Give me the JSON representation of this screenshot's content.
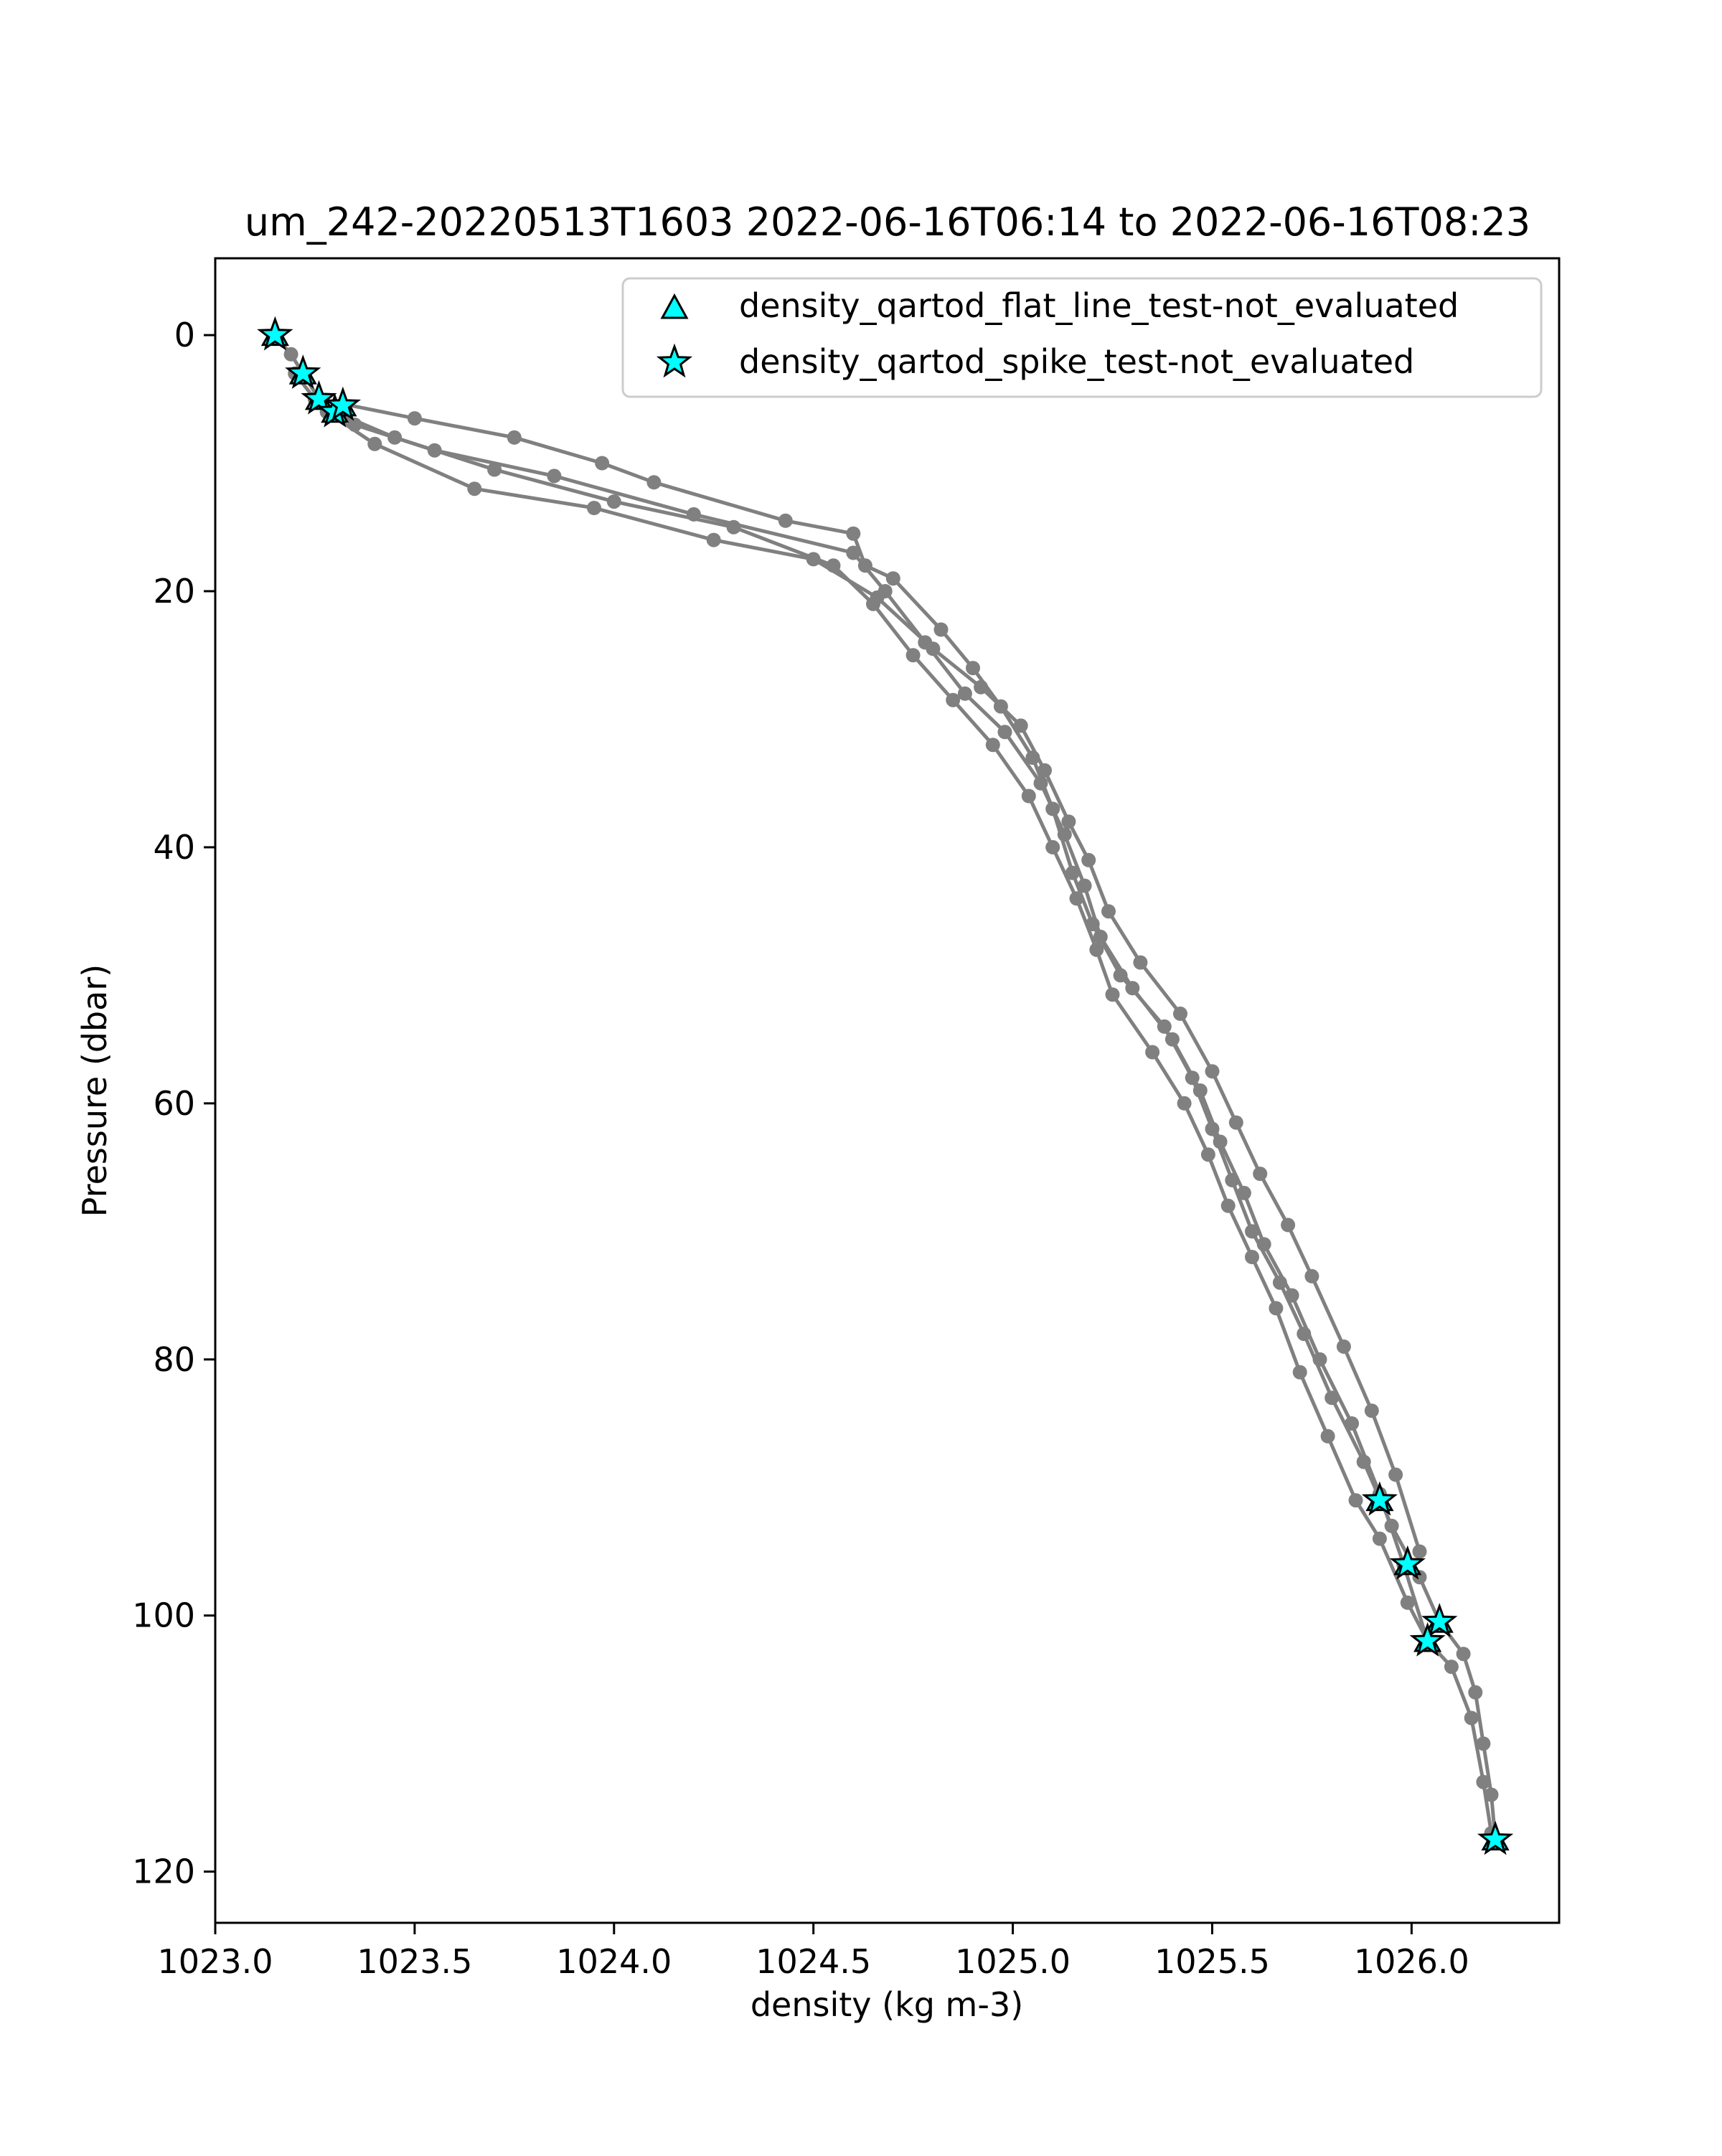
{
  "chart_data": {
    "type": "scatter",
    "title": "um_242-20220513T1603 2022-06-16T06:14 to 2022-06-16T08:23",
    "xlabel": "density (kg m-3)",
    "ylabel": "Pressure (dbar)",
    "xlim": [
      1023.0,
      1026.37
    ],
    "ylim": [
      124,
      -6
    ],
    "y_inverted": true,
    "x_ticks": [
      1023.0,
      1023.5,
      1024.0,
      1024.5,
      1025.0,
      1025.5,
      1026.0
    ],
    "x_tick_labels": [
      "1023.0",
      "1023.5",
      "1024.0",
      "1024.5",
      "1025.0",
      "1025.5",
      "1026.0"
    ],
    "y_ticks": [
      0,
      20,
      40,
      60,
      80,
      100,
      120
    ],
    "y_tick_labels": [
      "0",
      "20",
      "40",
      "60",
      "80",
      "100",
      "120"
    ],
    "grid": false,
    "legend_position": "top-right",
    "legend": [
      {
        "label": "density_qartod_flat_line_test-not_evaluated",
        "marker": "triangle",
        "color": "#00FFFF"
      },
      {
        "label": "density_qartod_spike_test-not_evaluated",
        "marker": "star",
        "color": "#00FFFF"
      }
    ],
    "profile_color": "#808080",
    "series": [
      {
        "x": [
          1023.15,
          1023.19,
          1023.22,
          1023.26,
          1023.5,
          1023.75,
          1023.97,
          1024.1,
          1024.43,
          1024.6,
          1024.63,
          1024.7,
          1024.82,
          1024.9,
          1024.97,
          1025.05,
          1025.1,
          1025.15,
          1025.2,
          1025.27,
          1025.38,
          1025.45,
          1025.5,
          1025.55,
          1025.6,
          1025.67,
          1025.73,
          1025.8,
          1025.88,
          1025.95,
          1026.02,
          1026.07,
          1026.13,
          1026.16,
          1026.18,
          1026.2,
          1026.21
        ],
        "y": [
          0,
          1.5,
          3,
          5,
          6.5,
          8,
          10,
          11.5,
          14.5,
          15.5,
          18,
          19,
          23,
          26,
          29,
          33,
          37,
          42,
          46,
          50,
          54,
          58,
          62,
          66,
          70,
          74,
          78,
          83,
          88,
          93,
          97,
          100.5,
          103,
          106,
          110,
          114,
          117.5
        ]
      },
      {
        "x": [
          1023.2,
          1023.25,
          1023.35,
          1023.55,
          1023.85,
          1024.2,
          1024.6,
          1024.68,
          1024.78,
          1024.88,
          1024.98,
          1025.07,
          1025.13,
          1025.18,
          1025.22,
          1025.3,
          1025.4,
          1025.47,
          1025.52,
          1025.58,
          1025.63,
          1025.7,
          1025.77,
          1025.85,
          1025.92,
          1025.98,
          1026.04,
          1026.1,
          1026.15,
          1026.18,
          1026.2
        ],
        "y": [
          3,
          5,
          7,
          9,
          11,
          14,
          17,
          20,
          24,
          28,
          31,
          35,
          39,
          43,
          47,
          51,
          55,
          59,
          63,
          67,
          71,
          75,
          80,
          85,
          90.5,
          96,
          102,
          104,
          108,
          113,
          117
        ]
      },
      {
        "x": [
          1023.25,
          1023.3,
          1023.45,
          1023.7,
          1024.0,
          1024.3,
          1024.55,
          1024.65,
          1024.75,
          1024.85,
          1024.95,
          1025.04,
          1025.1,
          1025.16,
          1025.21,
          1025.25,
          1025.35,
          1025.43,
          1025.49,
          1025.54,
          1025.6,
          1025.66,
          1025.72,
          1025.79,
          1025.86,
          1025.92,
          1025.99,
          1026.04
        ],
        "y": [
          5,
          6,
          8,
          10.5,
          13,
          15,
          18,
          21,
          25,
          28.5,
          32,
          36,
          40,
          44,
          48,
          51.5,
          56,
          60,
          64,
          68,
          72,
          76,
          81,
          86,
          91,
          94,
          99,
          102
        ]
      },
      {
        "x": [
          1023.28,
          1023.4,
          1023.65,
          1023.95,
          1024.25,
          1024.5,
          1024.66,
          1024.8,
          1024.92,
          1025.02,
          1025.08,
          1025.14,
          1025.19,
          1025.24,
          1025.32,
          1025.42,
          1025.5,
          1025.56,
          1025.62,
          1025.69,
          1025.75,
          1025.83,
          1025.9,
          1025.96,
          1026.02
        ],
        "y": [
          6,
          8.5,
          12,
          13.5,
          16,
          17.5,
          20.5,
          24.5,
          27.5,
          30.5,
          34,
          38,
          41,
          45,
          49,
          53,
          57.5,
          61.5,
          65.5,
          69.5,
          73.5,
          79,
          84,
          89,
          95
        ]
      }
    ],
    "flat_line_test_points": {
      "x": [
        1023.15,
        1023.22,
        1023.26,
        1023.3,
        1023.32,
        1025.92,
        1025.99,
        1026.07,
        1026.04,
        1026.21
      ],
      "y": [
        0,
        3,
        5,
        6,
        5.5,
        91,
        96,
        100.5,
        102,
        117.5
      ]
    },
    "spike_test_points": {
      "x": [
        1023.15,
        1023.22,
        1023.26,
        1023.3,
        1023.32,
        1025.92,
        1025.99,
        1026.07,
        1026.04,
        1026.21
      ],
      "y": [
        0,
        3,
        5,
        6,
        5.5,
        91,
        96,
        100.5,
        102,
        117.5
      ]
    }
  }
}
